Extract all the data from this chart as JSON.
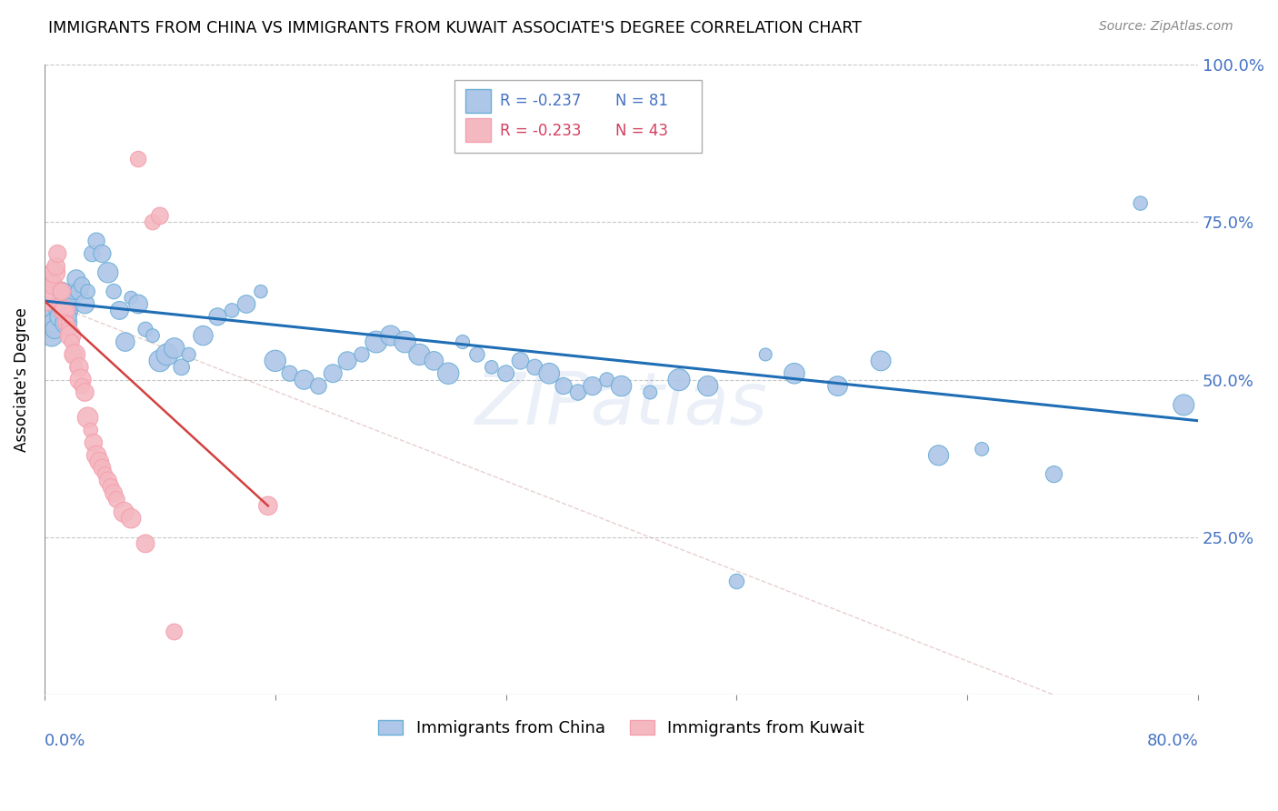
{
  "title": "IMMIGRANTS FROM CHINA VS IMMIGRANTS FROM KUWAIT ASSOCIATE'S DEGREE CORRELATION CHART",
  "source": "Source: ZipAtlas.com",
  "ylabel": "Associate's Degree",
  "legend_china_R": "-0.237",
  "legend_china_N": "81",
  "legend_kuwait_R": "-0.233",
  "legend_kuwait_N": "43",
  "legend_label_china": "Immigrants from China",
  "legend_label_kuwait": "Immigrants from Kuwait",
  "color_china_fill": "#aec6e8",
  "color_china_edge": "#6baed6",
  "color_kuwait_fill": "#f4b8c1",
  "color_kuwait_edge": "#f4a0ae",
  "color_china_line": "#1f6eb5",
  "color_kuwait_line": "#d44040",
  "color_axis_labels": "#4472c4",
  "color_grid": "#c8c8c8",
  "color_refline": "#d8b0b0",
  "watermark": "ZIPatlas",
  "xmin": 0.0,
  "xmax": 0.8,
  "ymin": 0.0,
  "ymax": 1.0,
  "china_trend_x": [
    0.0,
    0.8
  ],
  "china_trend_y": [
    0.625,
    0.435
  ],
  "kuwait_trend_x": [
    0.0,
    0.155
  ],
  "kuwait_trend_y": [
    0.625,
    0.3
  ],
  "refline_x": [
    0.0,
    0.7
  ],
  "refline_y": [
    0.625,
    0.0
  ],
  "china_x": [
    0.003,
    0.005,
    0.006,
    0.007,
    0.008,
    0.009,
    0.01,
    0.011,
    0.012,
    0.013,
    0.014,
    0.015,
    0.016,
    0.017,
    0.018,
    0.019,
    0.02,
    0.022,
    0.024,
    0.026,
    0.028,
    0.03,
    0.033,
    0.036,
    0.04,
    0.044,
    0.048,
    0.052,
    0.056,
    0.06,
    0.065,
    0.07,
    0.075,
    0.08,
    0.085,
    0.09,
    0.095,
    0.1,
    0.11,
    0.12,
    0.13,
    0.14,
    0.15,
    0.16,
    0.17,
    0.18,
    0.19,
    0.2,
    0.21,
    0.22,
    0.23,
    0.24,
    0.25,
    0.26,
    0.27,
    0.28,
    0.29,
    0.3,
    0.31,
    0.32,
    0.33,
    0.34,
    0.35,
    0.36,
    0.37,
    0.38,
    0.39,
    0.4,
    0.42,
    0.44,
    0.46,
    0.48,
    0.5,
    0.52,
    0.55,
    0.58,
    0.62,
    0.65,
    0.7,
    0.76,
    0.79
  ],
  "china_y": [
    0.6,
    0.57,
    0.59,
    0.58,
    0.61,
    0.62,
    0.63,
    0.6,
    0.64,
    0.62,
    0.61,
    0.59,
    0.61,
    0.6,
    0.63,
    0.62,
    0.64,
    0.66,
    0.64,
    0.65,
    0.62,
    0.64,
    0.7,
    0.72,
    0.7,
    0.67,
    0.64,
    0.61,
    0.56,
    0.63,
    0.62,
    0.58,
    0.57,
    0.53,
    0.54,
    0.55,
    0.52,
    0.54,
    0.57,
    0.6,
    0.61,
    0.62,
    0.64,
    0.53,
    0.51,
    0.5,
    0.49,
    0.51,
    0.53,
    0.54,
    0.56,
    0.57,
    0.56,
    0.54,
    0.53,
    0.51,
    0.56,
    0.54,
    0.52,
    0.51,
    0.53,
    0.52,
    0.51,
    0.49,
    0.48,
    0.49,
    0.5,
    0.49,
    0.48,
    0.5,
    0.49,
    0.18,
    0.54,
    0.51,
    0.49,
    0.53,
    0.38,
    0.39,
    0.35,
    0.78,
    0.46
  ],
  "kuwait_x": [
    0.002,
    0.004,
    0.005,
    0.006,
    0.007,
    0.008,
    0.009,
    0.01,
    0.011,
    0.012,
    0.013,
    0.014,
    0.015,
    0.016,
    0.017,
    0.018,
    0.019,
    0.02,
    0.021,
    0.022,
    0.024,
    0.025,
    0.026,
    0.028,
    0.03,
    0.032,
    0.034,
    0.036,
    0.038,
    0.04,
    0.042,
    0.044,
    0.046,
    0.048,
    0.05,
    0.055,
    0.06,
    0.065,
    0.07,
    0.075,
    0.08,
    0.09,
    0.155
  ],
  "kuwait_y": [
    0.62,
    0.64,
    0.66,
    0.65,
    0.67,
    0.68,
    0.7,
    0.62,
    0.64,
    0.64,
    0.61,
    0.61,
    0.59,
    0.59,
    0.58,
    0.57,
    0.56,
    0.54,
    0.54,
    0.52,
    0.52,
    0.5,
    0.49,
    0.48,
    0.44,
    0.42,
    0.4,
    0.38,
    0.37,
    0.36,
    0.35,
    0.34,
    0.33,
    0.32,
    0.31,
    0.29,
    0.28,
    0.85,
    0.24,
    0.75,
    0.76,
    0.1,
    0.3
  ],
  "china_sizes_seed": 42,
  "kuwait_sizes_seed": 7
}
